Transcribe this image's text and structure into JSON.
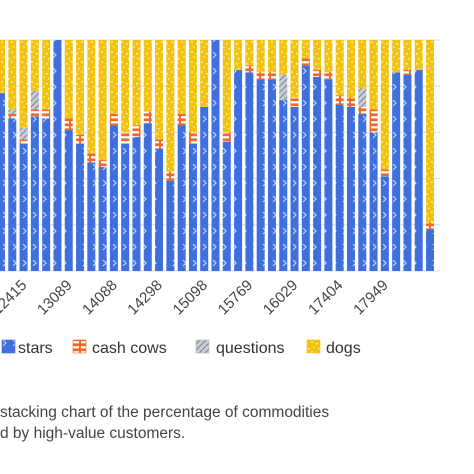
{
  "chart_data": {
    "type": "bar",
    "stacked": true,
    "percent": true,
    "ylim": [
      0,
      100
    ],
    "grid": true,
    "legend_position": "bottom",
    "categories": [
      "",
      "",
      "12415",
      "",
      "",
      "",
      "13089",
      "",
      "",
      "",
      "14088",
      "",
      "",
      "",
      "14298",
      "",
      "",
      "",
      "15098",
      "",
      "",
      "",
      "15769",
      "",
      "",
      "",
      "16029",
      "",
      "",
      "",
      "17404",
      "",
      "",
      "",
      "17949",
      "",
      "",
      "",
      ""
    ],
    "series": [
      {
        "name": "stars",
        "color": "#3e6fdc",
        "pattern": "chevron",
        "values": [
          77,
          66,
          55,
          67,
          66,
          100,
          61,
          55,
          47,
          45,
          63,
          55,
          58,
          64,
          53,
          39,
          63,
          55,
          71,
          100,
          56,
          87,
          86,
          83,
          83,
          74,
          71,
          89,
          84,
          83,
          72,
          71,
          68,
          60,
          41,
          86,
          85,
          87,
          18
        ]
      },
      {
        "name": "cash cows",
        "color": "#ef6a2a",
        "pattern": "bricks",
        "values": [
          0,
          2,
          2,
          3,
          4,
          0,
          5,
          4,
          4,
          3,
          5,
          5,
          5,
          5,
          4,
          4,
          5,
          5,
          0,
          0,
          4,
          0,
          3,
          3,
          3,
          0,
          4,
          3,
          3,
          3,
          4,
          4,
          3,
          10,
          3,
          0,
          2,
          0,
          3
        ]
      },
      {
        "name": "questions",
        "color": "#b4b9c4",
        "pattern": "hatch",
        "values": [
          0,
          2,
          5,
          8,
          0,
          0,
          0,
          0,
          0,
          0,
          0,
          0,
          0,
          0,
          0,
          0,
          0,
          0,
          0,
          0,
          0,
          0,
          0,
          0,
          0,
          11,
          0,
          0,
          0,
          0,
          0,
          0,
          8,
          0,
          0,
          0,
          0,
          0,
          0
        ]
      },
      {
        "name": "dogs",
        "color": "#f2c20f",
        "pattern": "confetti",
        "values": [
          23,
          30,
          38,
          22,
          30,
          0,
          34,
          41,
          49,
          52,
          32,
          40,
          37,
          31,
          43,
          57,
          32,
          40,
          29,
          0,
          40,
          13,
          11,
          14,
          14,
          15,
          25,
          8,
          13,
          14,
          24,
          25,
          21,
          30,
          56,
          14,
          13,
          13,
          79
        ]
      }
    ]
  },
  "caption": {
    "line1": "stacking chart of the percentage of commodities",
    "line2": "d by high-value customers."
  }
}
